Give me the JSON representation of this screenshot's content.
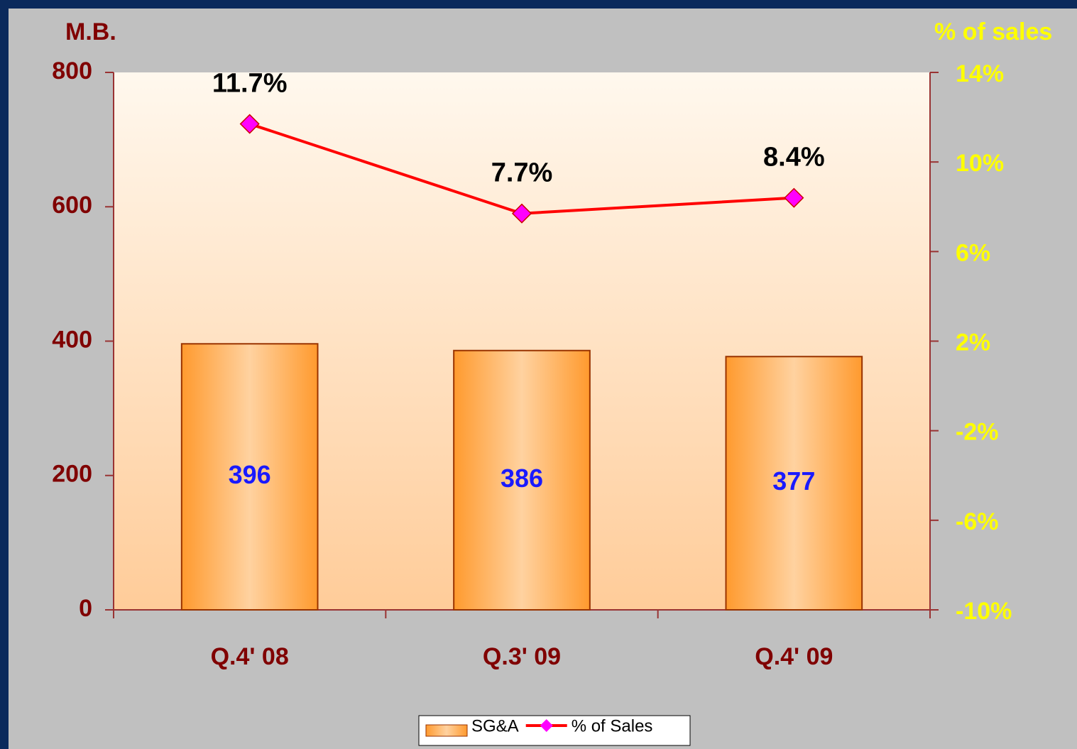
{
  "chart_data": {
    "type": "bar_line",
    "y_label": "M.B.",
    "y2_label": "% of sales",
    "categories": [
      "Q.4' 08",
      "Q.3' 09",
      "Q.4' 09"
    ],
    "series": [
      {
        "name": "SG&A",
        "type": "bar",
        "color": "#ff9a2e",
        "values": [
          396,
          386,
          377
        ]
      },
      {
        "name": "% of Sales",
        "type": "line",
        "axis": "y2",
        "color": "#ff0000",
        "marker_color": "#ff00ff",
        "values": [
          11.7,
          7.7,
          8.4
        ],
        "value_labels": [
          "11.7%",
          "7.7%",
          "8.4%"
        ]
      }
    ],
    "ylim": [
      0,
      800
    ],
    "yticks": [
      0,
      200,
      400,
      600,
      800
    ],
    "y2lim": [
      -10,
      14
    ],
    "y2ticks": [
      {
        "value": -10,
        "label": "-10%"
      },
      {
        "value": -6,
        "label": "-6%"
      },
      {
        "value": -2,
        "label": "-2%"
      },
      {
        "value": 2,
        "label": "2%"
      },
      {
        "value": 6,
        "label": "6%"
      },
      {
        "value": 10,
        "label": "10%"
      },
      {
        "value": 14,
        "label": "14%"
      }
    ],
    "legend": "bottom"
  }
}
